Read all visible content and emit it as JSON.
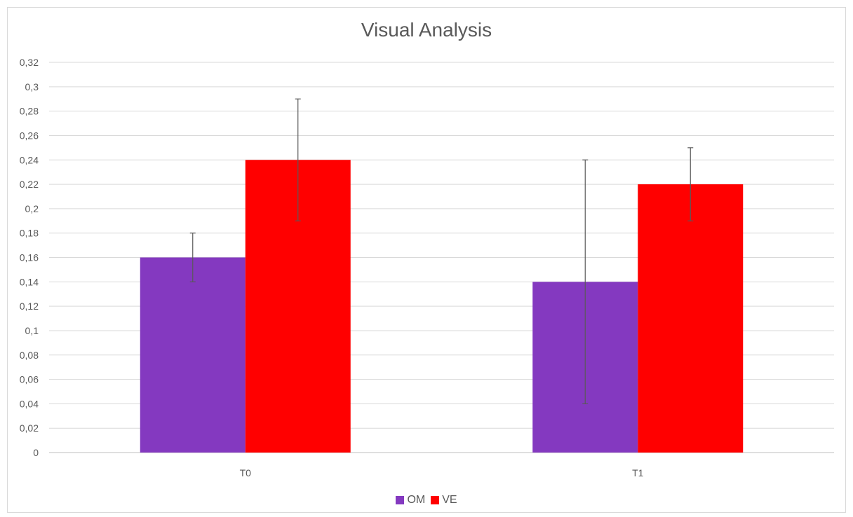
{
  "chart_data": {
    "type": "bar",
    "title": "Visual Analysis",
    "categories": [
      "T0",
      "T1"
    ],
    "series": [
      {
        "name": "OM",
        "color": "#8439c0",
        "values": [
          0.16,
          0.14
        ],
        "error_low": [
          0.14,
          0.04
        ],
        "error_high": [
          0.18,
          0.24
        ]
      },
      {
        "name": "VE",
        "color": "#ff0000",
        "values": [
          0.24,
          0.22
        ],
        "error_low": [
          0.19,
          0.19
        ],
        "error_high": [
          0.29,
          0.25
        ]
      }
    ],
    "ylim": [
      0,
      0.32
    ],
    "yticks": [
      0,
      0.02,
      0.04,
      0.06,
      0.08,
      0.1,
      0.12,
      0.14,
      0.16,
      0.18,
      0.2,
      0.22,
      0.24,
      0.26,
      0.28,
      0.3,
      0.32
    ],
    "ytick_labels": [
      "0",
      "0,02",
      "0,04",
      "0,06",
      "0,08",
      "0,1",
      "0,12",
      "0,14",
      "0,16",
      "0,18",
      "0,2",
      "0,22",
      "0,24",
      "0,26",
      "0,28",
      "0,3",
      "0,32"
    ],
    "grid": true,
    "legend_position": "bottom"
  }
}
